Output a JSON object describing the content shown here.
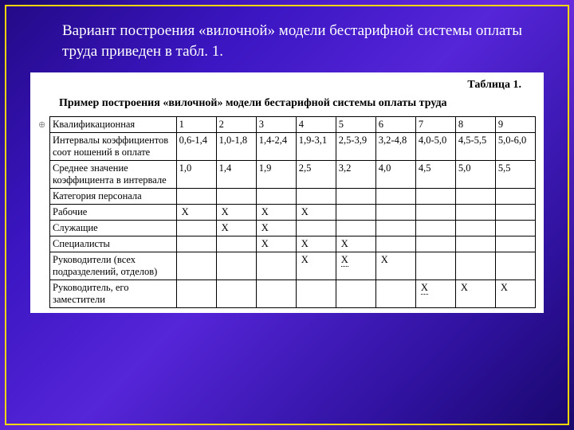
{
  "intro": "Вариант построения «вилочной» модели бестарифной системы оплаты труда приведен в табл. 1.",
  "tableLabel": "Таблица 1.",
  "caption": "Пример построения «вилочной» модели бестарифной системы оплаты труда",
  "anchor": "⊕",
  "colors": {
    "frame_border": "#ffd700",
    "page_bg": "#ffffff",
    "text": "#000000"
  },
  "table": {
    "columns": [
      "",
      "1",
      "2",
      "3",
      "4",
      "5",
      "6",
      "7",
      "8",
      "9"
    ],
    "rows": [
      {
        "label": "Квалификационная",
        "cells": [
          "1",
          "2",
          "3",
          "4",
          "5",
          "6",
          "7",
          "8",
          "9"
        ],
        "header": true
      },
      {
        "label": "Интервалы коэффициентов соот ношений в оплате",
        "cells": [
          "0,6-1,4",
          "1,0-1,8",
          "1,4-2,4",
          "1,9-3,1",
          "2,5-3,9",
          "3,2-4,8",
          "4,0-5,0",
          "4,5-5,5",
          "5,0-6,0"
        ]
      },
      {
        "label": "Среднее значение коэффициента в интервале",
        "cells": [
          "1,0",
          "1,4",
          "1,9",
          "2,5",
          "3,2",
          "4,0",
          "4,5",
          "5,0",
          "5,5"
        ]
      },
      {
        "label": "Категория персонала",
        "cells": [
          "",
          "",
          "",
          "",
          "",
          "",
          "",
          "",
          ""
        ]
      },
      {
        "label": "Рабочие",
        "cells": [
          "X",
          "X",
          "X",
          "X",
          "",
          "",
          "",
          "",
          ""
        ]
      },
      {
        "label": "Служащие",
        "cells": [
          "",
          "X",
          "X",
          "",
          "",
          "",
          "",
          "",
          ""
        ]
      },
      {
        "label": "Специалисты",
        "cells": [
          "",
          "",
          "X",
          "X",
          "X",
          "",
          "",
          "",
          ""
        ]
      },
      {
        "label": "Руководители (всех подразделений, отделов)",
        "cells": [
          "",
          "",
          "",
          "X",
          "X̣",
          "X",
          "",
          "",
          ""
        ]
      },
      {
        "label": "Руководитель, его заместители",
        "cells": [
          "",
          "",
          "",
          "",
          "",
          "",
          "X̣",
          "X",
          "X"
        ]
      }
    ]
  }
}
